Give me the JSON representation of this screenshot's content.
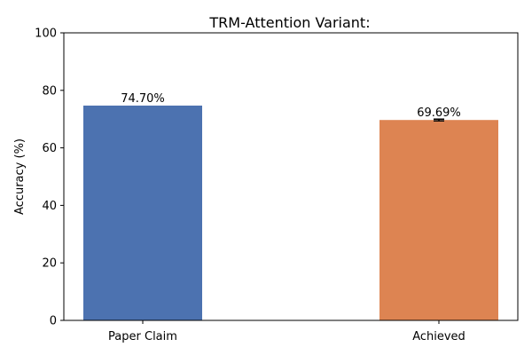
{
  "chart_data": {
    "type": "bar",
    "title": "TRM-Attention Variant:",
    "xlabel": "",
    "ylabel": "Accuracy (%)",
    "ylim": [
      0,
      100
    ],
    "yticks": [
      0,
      20,
      40,
      60,
      80,
      100
    ],
    "categories": [
      "Paper Claim",
      "Achieved"
    ],
    "values": [
      74.7,
      69.69
    ],
    "data_labels": [
      "74.70%",
      "69.69%"
    ],
    "error_bars": [
      null,
      0.3
    ],
    "colors": [
      "#4c72b0",
      "#dd8452"
    ],
    "grid": false,
    "legend": "none"
  }
}
